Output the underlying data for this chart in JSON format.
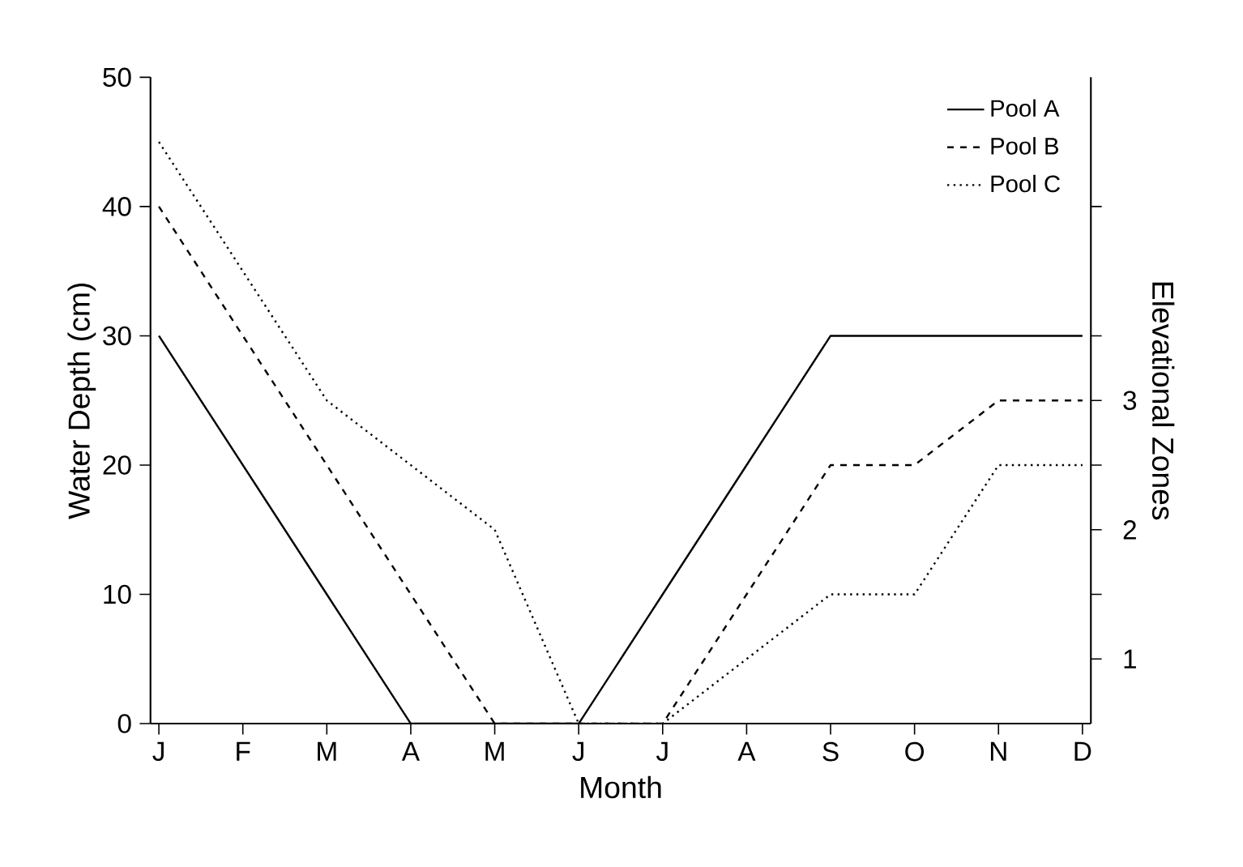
{
  "chart_data": {
    "type": "line",
    "xlabel": "Month",
    "ylabel": "Water Depth (cm)",
    "y2label": "Elevational Zones",
    "categories": [
      "J",
      "F",
      "M",
      "A",
      "M",
      "J",
      "J",
      "A",
      "S",
      "O",
      "N",
      "D"
    ],
    "ylim": [
      0,
      50
    ],
    "yticks": [
      0,
      10,
      20,
      30,
      40,
      50
    ],
    "y2lim": [
      0.5,
      5.5
    ],
    "y2ticks": [
      1,
      {
        "value": 1.5,
        "label": null
      },
      2,
      {
        "value": 2.5,
        "label": null
      },
      3,
      {
        "value": 3.5,
        "label": null
      },
      {
        "value": 4.5,
        "label": null
      }
    ],
    "grid": false,
    "legend": "top right",
    "series": [
      {
        "name": "Pool A",
        "color": "#000000",
        "line_style": "solid",
        "values": [
          30,
          20,
          10,
          0,
          0,
          0,
          10,
          20,
          30,
          30,
          30,
          30
        ]
      },
      {
        "name": "Pool B",
        "color": "#000000",
        "line_style": "dashed",
        "values": [
          40,
          30,
          20,
          10,
          0,
          0,
          0,
          10,
          20,
          20,
          25,
          25
        ]
      },
      {
        "name": "Pool C",
        "color": "#000000",
        "line_style": "dotted",
        "values": [
          45,
          35,
          25,
          20,
          15,
          0,
          0,
          5,
          10,
          10,
          20,
          20
        ]
      }
    ]
  }
}
